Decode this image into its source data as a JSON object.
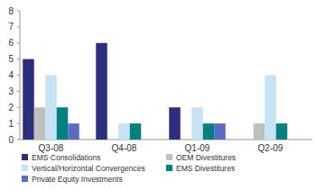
{
  "chart_data": {
    "type": "bar",
    "categories": [
      "Q3-08",
      "Q4-08",
      "Q1-09",
      "Q2-09"
    ],
    "series": [
      {
        "name": "EMS Consolidations",
        "color": "#2b2f7e",
        "values": [
          5,
          6,
          2,
          0
        ]
      },
      {
        "name": "OEM Divestitures",
        "color": "#bfbfbf",
        "values": [
          2,
          0,
          0,
          1
        ]
      },
      {
        "name": "Vertical/Horizontal Convergences",
        "color": "#c6e2f5",
        "values": [
          4,
          1,
          2,
          4
        ]
      },
      {
        "name": "EMS Divestitures",
        "color": "#00807f",
        "values": [
          2,
          1,
          1,
          1
        ]
      },
      {
        "name": "Private Equity Investments",
        "color": "#5a6bc5",
        "values": [
          1,
          0,
          1,
          0
        ]
      }
    ],
    "ylim": [
      0,
      8
    ],
    "yticks": [
      0,
      1,
      2,
      3,
      4,
      5,
      6,
      7,
      8
    ],
    "grid": false,
    "legend": "bottom"
  }
}
